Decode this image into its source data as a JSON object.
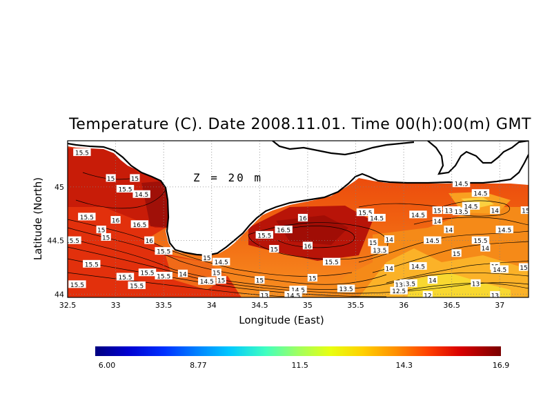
{
  "title": "Temperature (C). Date 2008.11.01. Time 00(h):00(m) GMT",
  "depth_label": "Z = 20 m",
  "x_axis": {
    "label": "Longitude (East)",
    "range": [
      32.5,
      37.3
    ],
    "ticks": [
      "32.5",
      "33",
      "33.5",
      "34",
      "34.5",
      "35",
      "35.5",
      "36",
      "36.5",
      "37"
    ],
    "tick_values": [
      32.5,
      33,
      33.5,
      34,
      34.5,
      35,
      35.5,
      36,
      36.5,
      37
    ]
  },
  "y_axis": {
    "label": "Latitude (North)",
    "range": [
      43.97,
      45.43
    ],
    "ticks": [
      "44",
      "44.5",
      "45"
    ],
    "tick_values": [
      44,
      44.5,
      45
    ]
  },
  "colorbar": {
    "min": 6.0,
    "max": 16.9,
    "tick_labels": [
      "6.00",
      "8.77",
      "11.5",
      "14.3",
      "16.9"
    ],
    "tick_values": [
      6.0,
      8.77,
      11.5,
      14.3,
      16.9
    ],
    "colors": [
      "#00007f",
      "#0000c8",
      "#0030ff",
      "#0080ff",
      "#00c8ff",
      "#30ffd0",
      "#80ff80",
      "#d0ff30",
      "#ffe000",
      "#ffa000",
      "#ff6000",
      "#ff2000",
      "#d00000",
      "#800000"
    ]
  },
  "grid": true,
  "contour_labels": [
    {
      "lon": 32.65,
      "lat": 45.32,
      "text": "15.5"
    },
    {
      "lon": 32.95,
      "lat": 45.08,
      "text": "15"
    },
    {
      "lon": 33.2,
      "lat": 45.08,
      "text": "15"
    },
    {
      "lon": 33.1,
      "lat": 44.98,
      "text": "15.5"
    },
    {
      "lon": 33.27,
      "lat": 44.93,
      "text": "14.5"
    },
    {
      "lon": 32.7,
      "lat": 44.72,
      "text": "15.5"
    },
    {
      "lon": 33.0,
      "lat": 44.69,
      "text": "16"
    },
    {
      "lon": 33.25,
      "lat": 44.65,
      "text": "16.5"
    },
    {
      "lon": 32.55,
      "lat": 44.5,
      "text": "15.5"
    },
    {
      "lon": 32.85,
      "lat": 44.6,
      "text": "15"
    },
    {
      "lon": 32.9,
      "lat": 44.53,
      "text": "15"
    },
    {
      "lon": 33.35,
      "lat": 44.5,
      "text": "16"
    },
    {
      "lon": 33.5,
      "lat": 44.4,
      "text": "15.5"
    },
    {
      "lon": 32.75,
      "lat": 44.28,
      "text": "15.5"
    },
    {
      "lon": 33.1,
      "lat": 44.16,
      "text": "15.5"
    },
    {
      "lon": 33.33,
      "lat": 44.2,
      "text": "15.5"
    },
    {
      "lon": 33.5,
      "lat": 44.17,
      "text": "15.5"
    },
    {
      "lon": 33.7,
      "lat": 44.19,
      "text": "14"
    },
    {
      "lon": 32.6,
      "lat": 44.09,
      "text": "15.5"
    },
    {
      "lon": 33.22,
      "lat": 44.08,
      "text": "15.5"
    },
    {
      "lon": 33.95,
      "lat": 44.34,
      "text": "15"
    },
    {
      "lon": 34.1,
      "lat": 44.3,
      "text": "14.5"
    },
    {
      "lon": 34.05,
      "lat": 44.2,
      "text": "15"
    },
    {
      "lon": 33.95,
      "lat": 44.12,
      "text": "14.5"
    },
    {
      "lon": 34.1,
      "lat": 44.13,
      "text": "15"
    },
    {
      "lon": 34.55,
      "lat": 44.55,
      "text": "15.5"
    },
    {
      "lon": 34.75,
      "lat": 44.6,
      "text": "16.5"
    },
    {
      "lon": 34.95,
      "lat": 44.71,
      "text": "16"
    },
    {
      "lon": 35.0,
      "lat": 44.45,
      "text": "16"
    },
    {
      "lon": 34.65,
      "lat": 44.42,
      "text": "15"
    },
    {
      "lon": 35.25,
      "lat": 44.3,
      "text": "15.5"
    },
    {
      "lon": 35.05,
      "lat": 44.15,
      "text": "15"
    },
    {
      "lon": 34.5,
      "lat": 44.13,
      "text": "15"
    },
    {
      "lon": 34.9,
      "lat": 44.04,
      "text": "14.5"
    },
    {
      "lon": 34.85,
      "lat": 43.99,
      "text": "14.5"
    },
    {
      "lon": 34.55,
      "lat": 43.99,
      "text": "13"
    },
    {
      "lon": 35.4,
      "lat": 44.05,
      "text": "13.5"
    },
    {
      "lon": 35.6,
      "lat": 44.76,
      "text": "15.5"
    },
    {
      "lon": 35.72,
      "lat": 44.71,
      "text": "14.5"
    },
    {
      "lon": 35.68,
      "lat": 44.48,
      "text": "15"
    },
    {
      "lon": 35.85,
      "lat": 44.51,
      "text": "14"
    },
    {
      "lon": 35.75,
      "lat": 44.41,
      "text": "13.5"
    },
    {
      "lon": 35.85,
      "lat": 44.24,
      "text": "14"
    },
    {
      "lon": 36.15,
      "lat": 44.26,
      "text": "14.5"
    },
    {
      "lon": 36.15,
      "lat": 44.74,
      "text": "14.5"
    },
    {
      "lon": 36.35,
      "lat": 44.78,
      "text": "15"
    },
    {
      "lon": 36.5,
      "lat": 44.78,
      "text": "13.5"
    },
    {
      "lon": 36.6,
      "lat": 44.77,
      "text": "13.5"
    },
    {
      "lon": 36.7,
      "lat": 44.82,
      "text": "14.5"
    },
    {
      "lon": 36.8,
      "lat": 44.94,
      "text": "14.5"
    },
    {
      "lon": 36.6,
      "lat": 45.03,
      "text": "14.5"
    },
    {
      "lon": 36.95,
      "lat": 44.78,
      "text": "14"
    },
    {
      "lon": 37.27,
      "lat": 44.78,
      "text": "15"
    },
    {
      "lon": 36.35,
      "lat": 44.68,
      "text": "14"
    },
    {
      "lon": 36.47,
      "lat": 44.6,
      "text": "14"
    },
    {
      "lon": 37.05,
      "lat": 44.6,
      "text": "14.5"
    },
    {
      "lon": 36.3,
      "lat": 44.5,
      "text": "14.5"
    },
    {
      "lon": 36.8,
      "lat": 44.5,
      "text": "15.5"
    },
    {
      "lon": 36.85,
      "lat": 44.43,
      "text": "14"
    },
    {
      "lon": 36.55,
      "lat": 44.38,
      "text": "15"
    },
    {
      "lon": 36.95,
      "lat": 44.26,
      "text": "15"
    },
    {
      "lon": 37.0,
      "lat": 44.23,
      "text": "14.5"
    },
    {
      "lon": 37.25,
      "lat": 44.25,
      "text": "15"
    },
    {
      "lon": 36.3,
      "lat": 44.13,
      "text": "14"
    },
    {
      "lon": 36.05,
      "lat": 44.1,
      "text": "13.5"
    },
    {
      "lon": 35.95,
      "lat": 44.09,
      "text": "13"
    },
    {
      "lon": 35.95,
      "lat": 44.03,
      "text": "12.5"
    },
    {
      "lon": 36.25,
      "lat": 43.99,
      "text": "12"
    },
    {
      "lon": 36.75,
      "lat": 44.1,
      "text": "13"
    },
    {
      "lon": 36.95,
      "lat": 43.99,
      "text": "13"
    }
  ]
}
